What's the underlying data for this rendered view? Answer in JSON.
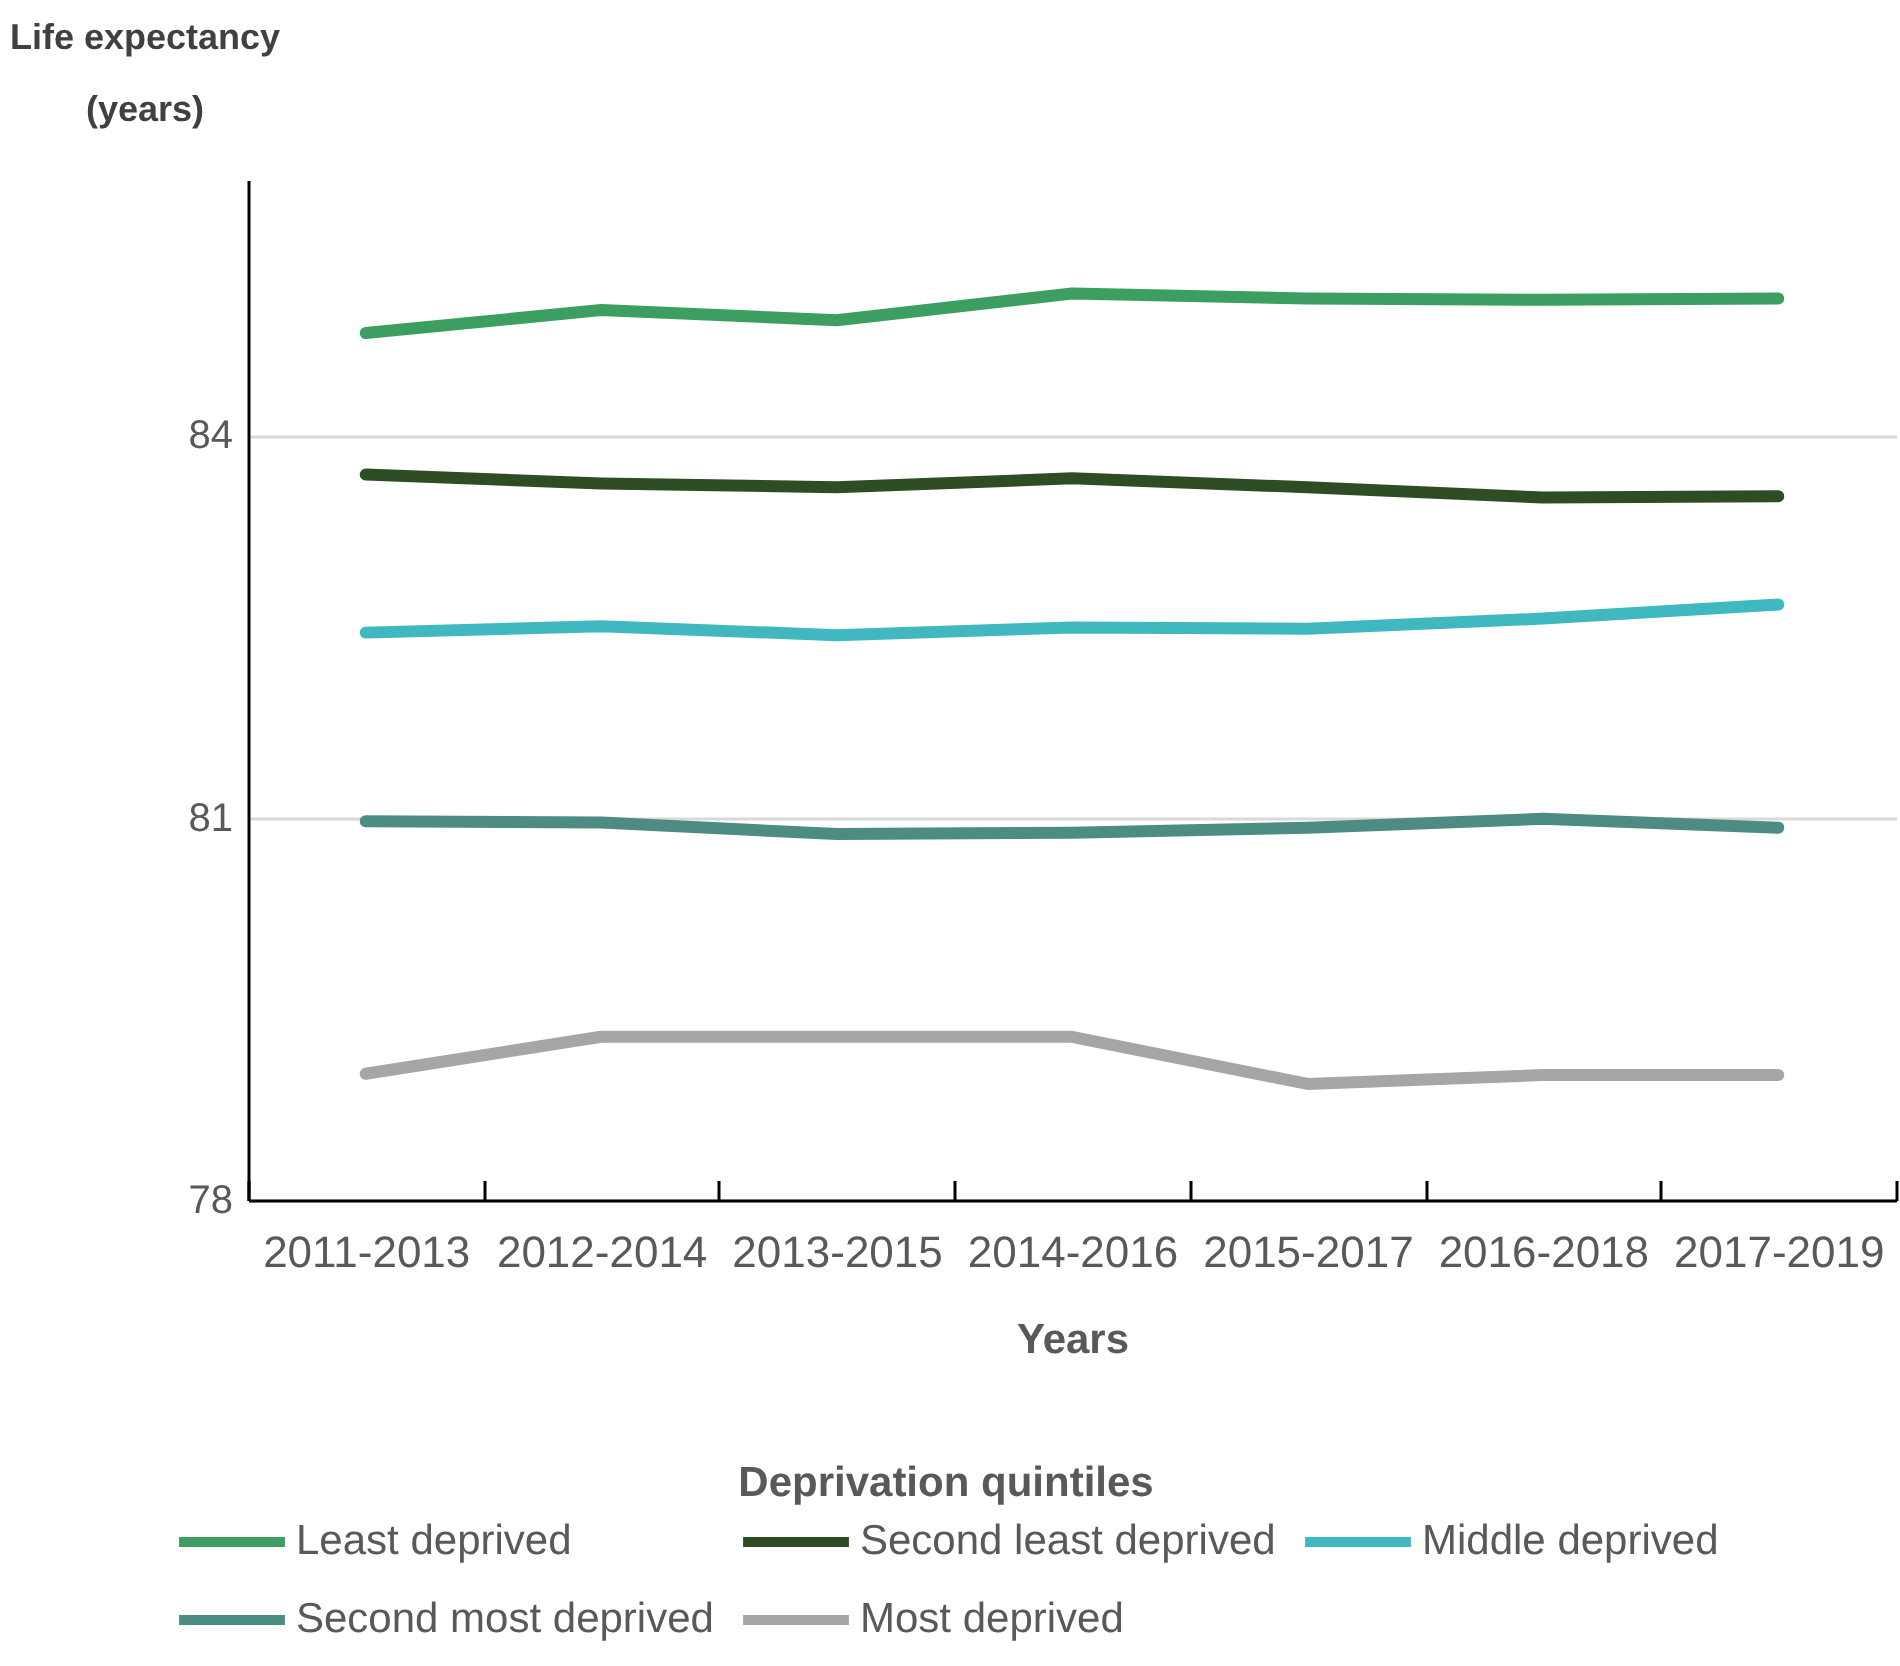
{
  "chart_data": {
    "type": "line",
    "xlabel": "Years",
    "ylabel": "Life expectancy (years)",
    "legend_title": "Deprivation quintiles",
    "categories": [
      "2011-2013",
      "2012-2014",
      "2013-2015",
      "2014-2016",
      "2015-2017",
      "2016-2018",
      "2017-2019"
    ],
    "series": [
      {
        "name": "Least deprived",
        "color": "#3d9e62",
        "values": [
          84.8,
          84.98,
          84.9,
          85.11,
          85.07,
          85.06,
          85.07
        ]
      },
      {
        "name": "Second least deprived",
        "color": "#2e4d24",
        "values": [
          83.69,
          83.62,
          83.59,
          83.66,
          83.59,
          83.51,
          83.52
        ]
      },
      {
        "name": "Middle deprived",
        "color": "#3fb8c0",
        "values": [
          82.45,
          82.5,
          82.43,
          82.49,
          82.48,
          82.56,
          82.67
        ]
      },
      {
        "name": "Second most deprived",
        "color": "#4d8c82",
        "values": [
          80.97,
          80.96,
          80.87,
          80.88,
          80.92,
          80.99,
          80.92
        ]
      },
      {
        "name": "Most deprived",
        "color": "#a6a6a6",
        "values": [
          78.99,
          79.28,
          79.28,
          79.28,
          78.91,
          78.98,
          78.98
        ]
      }
    ],
    "ylim": [
      78,
      86
    ],
    "yticks": [
      78,
      81,
      84
    ],
    "grid": "y",
    "legend": "bottom",
    "line_style": "solid"
  }
}
